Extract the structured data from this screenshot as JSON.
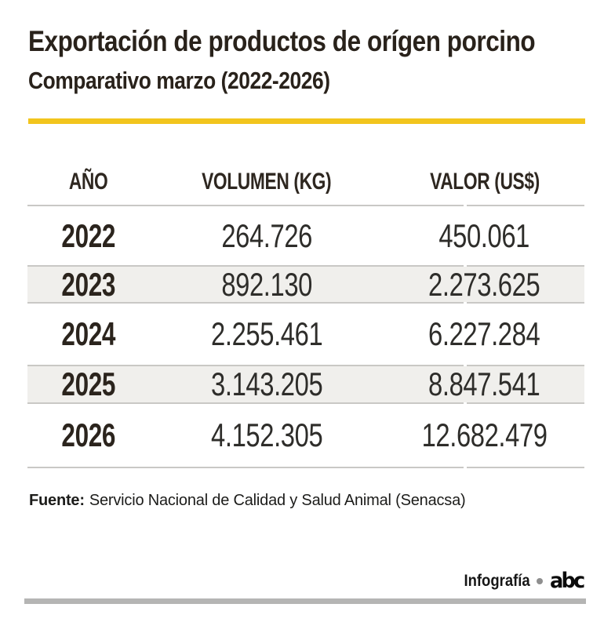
{
  "page": {
    "title": "Exportación de productos de orígen porcino",
    "subtitle": "Comparativo marzo (2022-2026)"
  },
  "table": {
    "columns": [
      "AÑO",
      "VOLUMEN (KG)",
      "VALOR (US$)"
    ],
    "rows": [
      {
        "year": "2022",
        "volume": "264.726",
        "value": "450.061"
      },
      {
        "year": "2023",
        "volume": "892.130",
        "value": "2.273.625"
      },
      {
        "year": "2024",
        "volume": "2.255.461",
        "value": "6.227.284"
      },
      {
        "year": "2025",
        "volume": "3.143.205",
        "value": "8.847.541"
      },
      {
        "year": "2026",
        "volume": "4.152.305",
        "value": "12.682.479"
      }
    ]
  },
  "chart_data": {
    "type": "table",
    "title": "Exportación de productos de orígen porcino",
    "subtitle": "Comparativo marzo (2022-2026)",
    "columns": [
      "AÑO",
      "VOLUMEN (KG)",
      "VALOR (US$)"
    ],
    "rows": [
      [
        "2022",
        264726,
        450061
      ],
      [
        "2023",
        892130,
        2273625
      ],
      [
        "2024",
        2255461,
        6227284
      ],
      [
        "2025",
        3143205,
        8847541
      ],
      [
        "2026",
        4152305,
        12682479
      ]
    ],
    "source": "Servicio Nacional de Calidad y Salud Animal (Senacsa)",
    "layout_hints": {
      "striped_rows": [
        "2023",
        "2025"
      ],
      "grid": "horizontal-dividers"
    }
  },
  "source": {
    "label": "Fuente:",
    "text": "Servicio Nacional de Calidad y Salud Animal (Senacsa)"
  },
  "footer": {
    "credit": "Infografía",
    "brand": "abc"
  },
  "colors": {
    "accent_yellow": "#F2C51D",
    "stripe_gray": "#F0EFEC",
    "divider_gray": "#C9C8C5",
    "bottom_bar_gray": "#B5B5B4",
    "ink": "#29221B"
  }
}
